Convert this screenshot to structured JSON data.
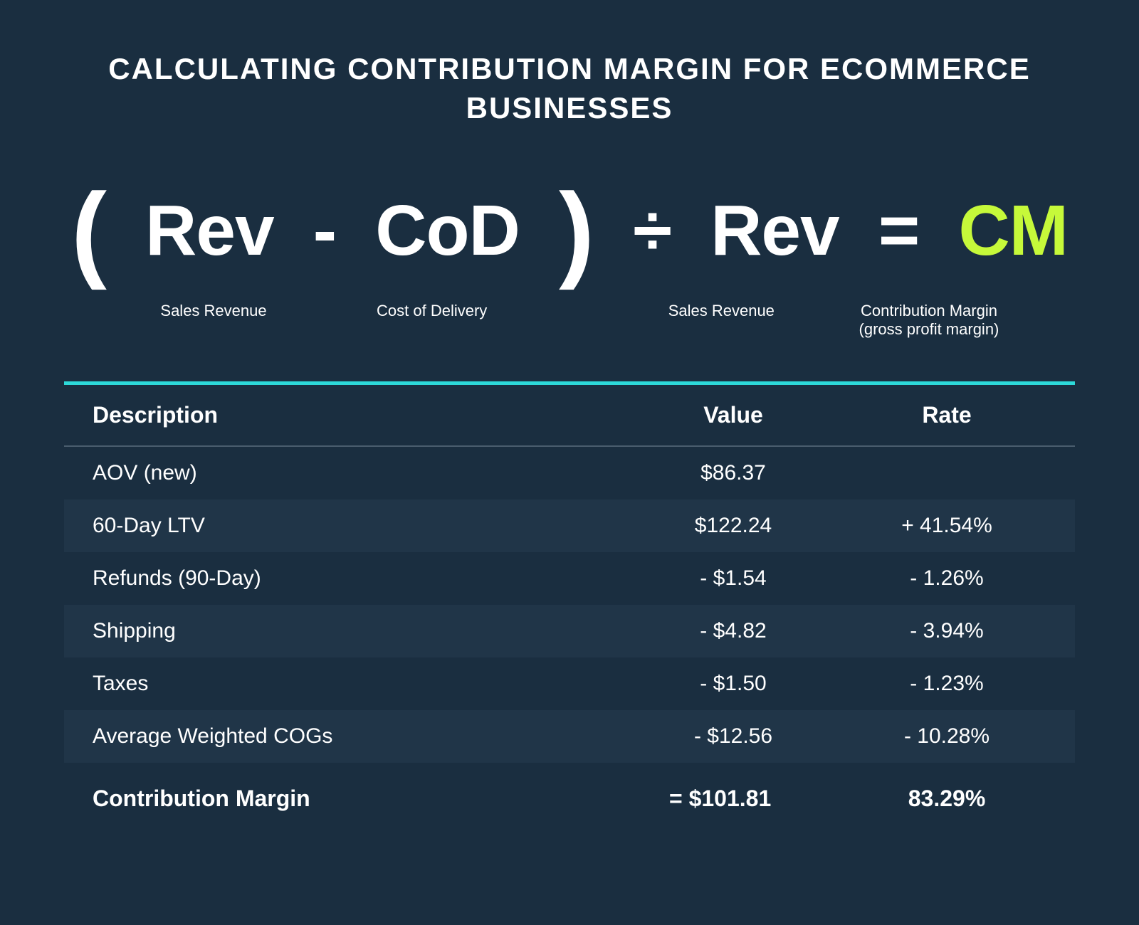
{
  "title": "CALCULATING CONTRIBUTION MARGIN FOR ECOMMERCE BUSINESSES",
  "formula": {
    "paren_open": "(",
    "rev1": "Rev",
    "minus": " - ",
    "cod": "CoD",
    "paren_close": ")",
    "divide": " ÷ ",
    "rev2": "Rev",
    "equals": " = ",
    "cm": "CM",
    "labels": {
      "rev1": "Sales Revenue",
      "cod": "Cost of Delivery",
      "rev2": "Sales Revenue",
      "cm_line1": "Contribution Margin",
      "cm_line2": "(gross profit margin)"
    },
    "accent_color": "#c6f93a"
  },
  "table": {
    "top_border_color": "#2dd9d9",
    "row_alt_color": "#203548",
    "header_border_color": "#4a5d6e",
    "columns": [
      "Description",
      "Value",
      "Rate"
    ],
    "rows": [
      {
        "desc": "AOV (new)",
        "value": "$86.37",
        "rate": "",
        "alt": false
      },
      {
        "desc": "60-Day LTV",
        "value": "$122.24",
        "rate": "+ 41.54%",
        "alt": true
      },
      {
        "desc": "Refunds (90-Day)",
        "value": "- $1.54",
        "rate": "- 1.26%",
        "alt": false
      },
      {
        "desc": "Shipping",
        "value": "- $4.82",
        "rate": "- 3.94%",
        "alt": true
      },
      {
        "desc": "Taxes",
        "value": "- $1.50",
        "rate": "- 1.23%",
        "alt": false
      },
      {
        "desc": "Average Weighted COGs",
        "value": "- $12.56",
        "rate": "- 10.28%",
        "alt": true
      }
    ],
    "footer": {
      "desc": "Contribution Margin",
      "value": "=  $101.81",
      "rate": "83.29%"
    }
  },
  "colors": {
    "background": "#1a2e40",
    "text": "#ffffff"
  }
}
